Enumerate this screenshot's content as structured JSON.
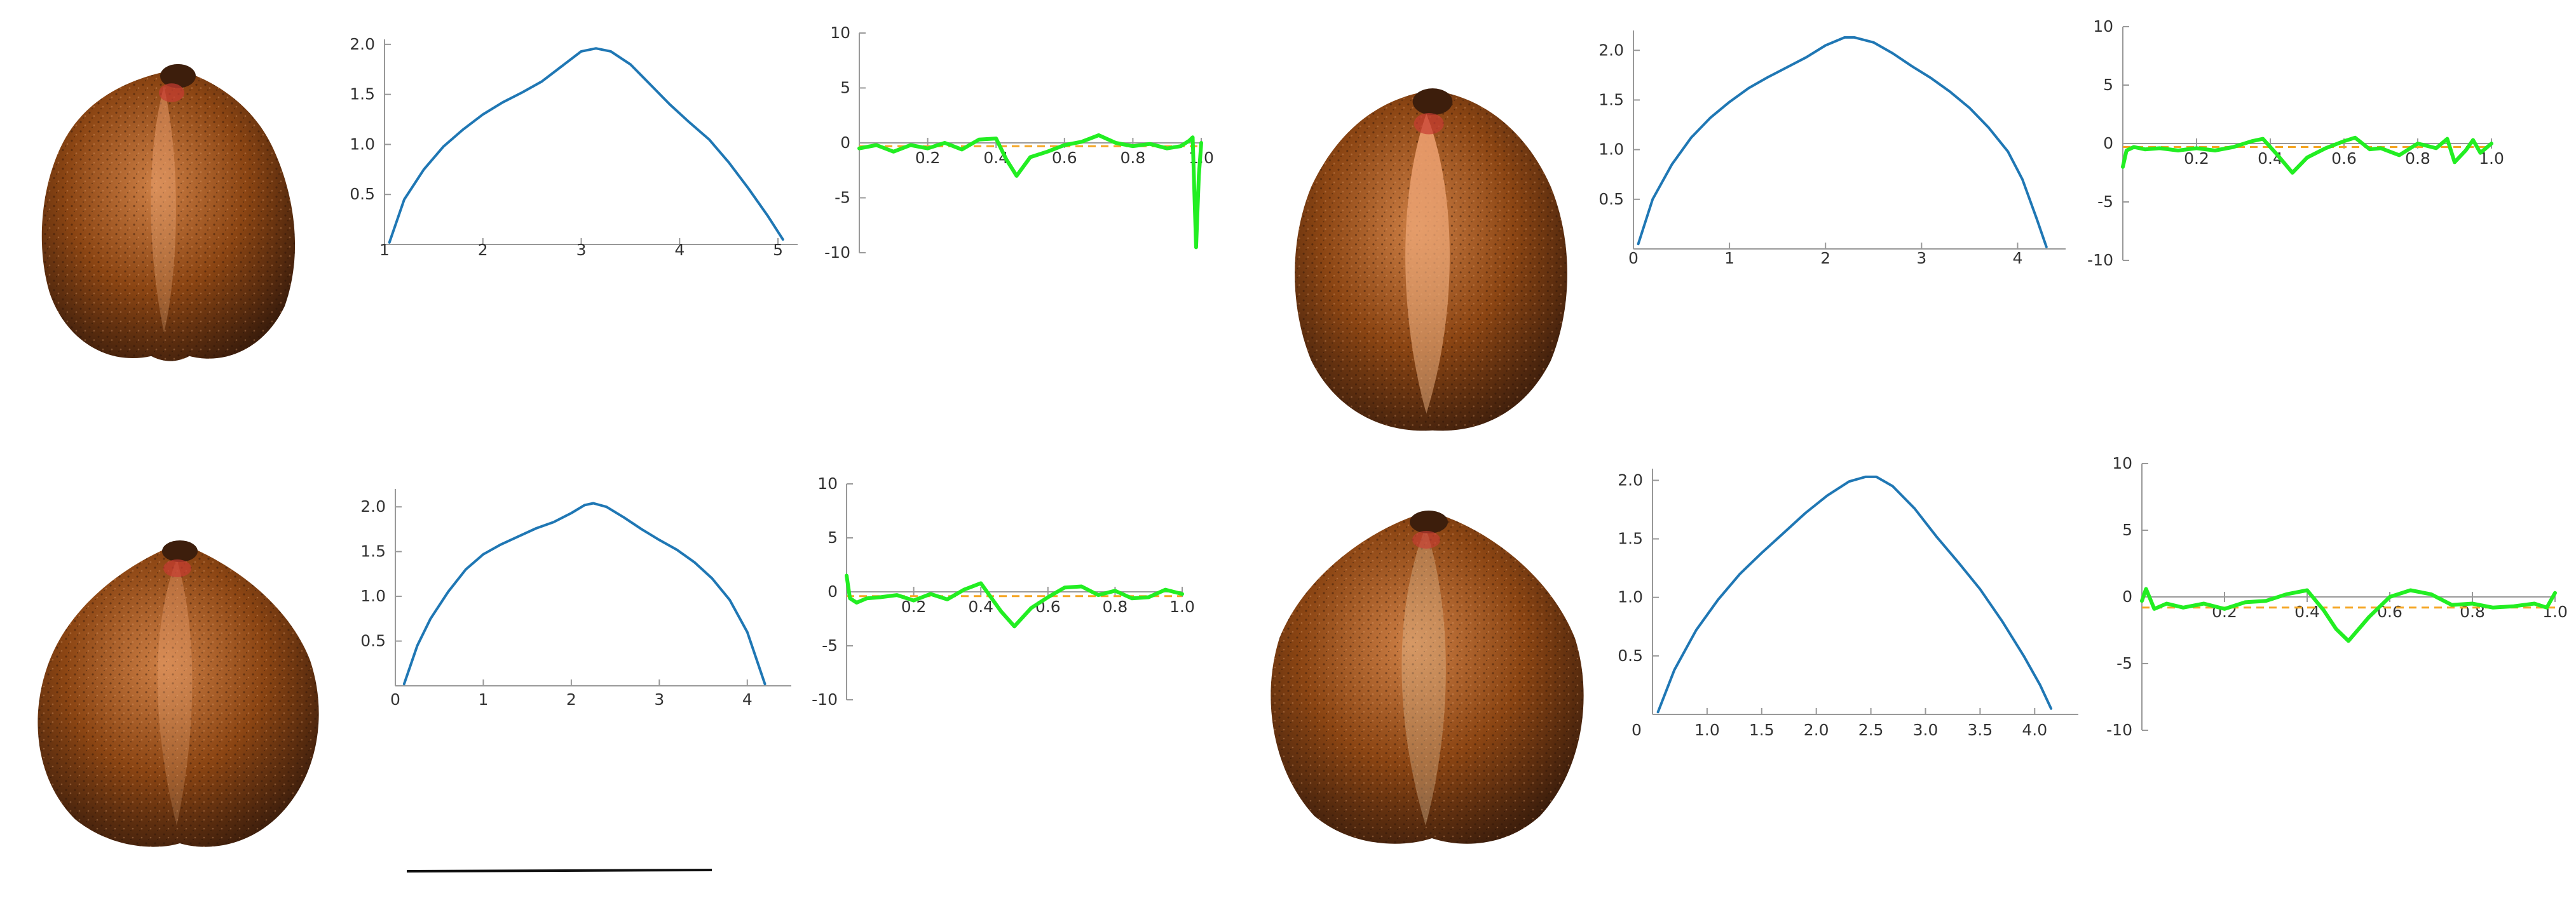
{
  "colors": {
    "profile": "#1f77b4",
    "residual": "#22ee22",
    "reference": "#f5a623",
    "axis": "#999999",
    "tick_text": "#333333",
    "seed_dark": "#3d1e0c",
    "seed_mid": "#8b4513",
    "seed_light": "#cd7f45",
    "seed_tip": "#c83c32",
    "scale_bar": "#111111"
  },
  "seeds": [
    {
      "name": "seed-top-left",
      "icon": "seed-photo-icon"
    },
    {
      "name": "seed-top-right",
      "icon": "seed-photo-icon"
    },
    {
      "name": "seed-bottom-left",
      "icon": "seed-photo-icon"
    },
    {
      "name": "seed-bottom-right",
      "icon": "seed-photo-icon"
    }
  ],
  "chart_data": [
    {
      "id": "profile-top-left",
      "type": "line",
      "title": "",
      "xlabel": "",
      "ylabel": "",
      "xlim": [
        1,
        5.2
      ],
      "ylim": [
        0,
        2.05
      ],
      "xticks": [
        1,
        2,
        3,
        4,
        5
      ],
      "xtick_labels": [
        "1",
        "2",
        "3",
        "4",
        "5"
      ],
      "yticks": [
        0.5,
        1.0,
        1.5,
        2.0
      ],
      "ytick_labels": [
        "0.5",
        "1.0",
        "1.5",
        "2.0"
      ],
      "grid": false,
      "series": [
        {
          "x": [
            1.05,
            1.2,
            1.4,
            1.6,
            1.8,
            2.0,
            2.2,
            2.4,
            2.6,
            2.8,
            3.0,
            3.15,
            3.3,
            3.5,
            3.7,
            3.9,
            4.1,
            4.3,
            4.5,
            4.7,
            4.9,
            5.05
          ],
          "values": [
            0.02,
            0.45,
            0.75,
            0.98,
            1.15,
            1.3,
            1.42,
            1.52,
            1.63,
            1.78,
            1.93,
            1.96,
            1.93,
            1.8,
            1.6,
            1.4,
            1.22,
            1.05,
            0.82,
            0.56,
            0.28,
            0.05
          ]
        }
      ]
    },
    {
      "id": "residual-top-left",
      "type": "line",
      "title": "",
      "xlabel": "",
      "ylabel": "",
      "xlim": [
        0,
        1.0
      ],
      "ylim": [
        -10,
        10
      ],
      "xticks": [
        0.2,
        0.4,
        0.6,
        0.8,
        1.0
      ],
      "xtick_labels": [
        "0.2",
        "0.4",
        "0.6",
        "0.8",
        "1.0"
      ],
      "yticks": [
        -10,
        -5,
        0,
        5,
        10
      ],
      "ytick_labels": [
        "-10",
        "-5",
        "0",
        "5",
        "10"
      ],
      "grid": false,
      "reference_line": -0.3,
      "series": [
        {
          "x": [
            0,
            0.05,
            0.1,
            0.15,
            0.2,
            0.25,
            0.3,
            0.35,
            0.4,
            0.43,
            0.46,
            0.5,
            0.55,
            0.6,
            0.65,
            0.7,
            0.75,
            0.8,
            0.85,
            0.9,
            0.94,
            0.965,
            0.975,
            0.985,
            0.993,
            1.0
          ],
          "values": [
            -0.5,
            -0.2,
            -0.8,
            -0.2,
            -0.5,
            0.0,
            -0.6,
            0.3,
            0.4,
            -1.5,
            -3.0,
            -1.3,
            -0.8,
            -0.2,
            0.1,
            0.7,
            0.0,
            -0.3,
            -0.1,
            -0.5,
            -0.3,
            0.2,
            0.5,
            -9.5,
            -3.0,
            0.0
          ]
        }
      ]
    },
    {
      "id": "profile-top-right",
      "type": "line",
      "title": "",
      "xlabel": "",
      "ylabel": "",
      "xlim": [
        0,
        4.5
      ],
      "ylim": [
        0,
        2.2
      ],
      "xticks": [
        0,
        1,
        2,
        3,
        4
      ],
      "xtick_labels": [
        "0",
        "1",
        "2",
        "3",
        "4"
      ],
      "yticks": [
        0.5,
        1.0,
        1.5,
        2.0
      ],
      "ytick_labels": [
        "0.5",
        "1.0",
        "1.5",
        "2.0"
      ],
      "grid": false,
      "series": [
        {
          "x": [
            0.05,
            0.2,
            0.4,
            0.6,
            0.8,
            1.0,
            1.2,
            1.4,
            1.6,
            1.8,
            2.0,
            2.2,
            2.3,
            2.5,
            2.7,
            2.9,
            3.1,
            3.3,
            3.5,
            3.7,
            3.9,
            4.05,
            4.2,
            4.3
          ],
          "values": [
            0.05,
            0.5,
            0.85,
            1.12,
            1.32,
            1.48,
            1.62,
            1.73,
            1.83,
            1.93,
            2.05,
            2.13,
            2.13,
            2.08,
            1.97,
            1.84,
            1.72,
            1.58,
            1.42,
            1.22,
            0.98,
            0.7,
            0.3,
            0.02
          ]
        }
      ]
    },
    {
      "id": "residual-top-right",
      "type": "line",
      "title": "",
      "xlabel": "",
      "ylabel": "",
      "xlim": [
        0,
        1.0
      ],
      "ylim": [
        -10,
        10
      ],
      "xticks": [
        0.2,
        0.4,
        0.6,
        0.8,
        1.0
      ],
      "xtick_labels": [
        "0.2",
        "0.4",
        "0.6",
        "0.8",
        "1.0"
      ],
      "yticks": [
        -10,
        -5,
        0,
        5,
        10
      ],
      "ytick_labels": [
        "-10",
        "-5",
        "0",
        "5",
        "10"
      ],
      "grid": false,
      "reference_line": -0.3,
      "series": [
        {
          "x": [
            0.0,
            0.01,
            0.03,
            0.06,
            0.1,
            0.15,
            0.2,
            0.25,
            0.3,
            0.35,
            0.38,
            0.42,
            0.46,
            0.5,
            0.55,
            0.6,
            0.63,
            0.67,
            0.7,
            0.75,
            0.8,
            0.85,
            0.88,
            0.9,
            0.93,
            0.95,
            0.97,
            1.0
          ],
          "values": [
            -2.0,
            -0.6,
            -0.3,
            -0.5,
            -0.4,
            -0.6,
            -0.4,
            -0.6,
            -0.3,
            0.2,
            0.4,
            -1.0,
            -2.5,
            -1.2,
            -0.4,
            0.2,
            0.5,
            -0.5,
            -0.4,
            -1.0,
            0.0,
            -0.4,
            0.4,
            -1.6,
            -0.6,
            0.3,
            -0.8,
            0.0
          ]
        }
      ]
    },
    {
      "id": "profile-bottom-left",
      "type": "line",
      "title": "",
      "xlabel": "",
      "ylabel": "",
      "xlim": [
        0,
        4.5
      ],
      "ylim": [
        0,
        2.2
      ],
      "xticks": [
        0,
        1,
        2,
        3,
        4
      ],
      "xtick_labels": [
        "0",
        "1",
        "2",
        "3",
        "4"
      ],
      "yticks": [
        0.5,
        1.0,
        1.5,
        2.0
      ],
      "ytick_labels": [
        "0.5",
        "1.0",
        "1.5",
        "2.0"
      ],
      "grid": false,
      "series": [
        {
          "x": [
            0.1,
            0.25,
            0.4,
            0.6,
            0.8,
            1.0,
            1.2,
            1.4,
            1.6,
            1.8,
            2.0,
            2.15,
            2.25,
            2.4,
            2.6,
            2.8,
            3.0,
            3.2,
            3.4,
            3.6,
            3.8,
            4.0,
            4.2
          ],
          "values": [
            0.02,
            0.45,
            0.75,
            1.05,
            1.3,
            1.47,
            1.58,
            1.67,
            1.76,
            1.83,
            1.93,
            2.02,
            2.04,
            2.0,
            1.88,
            1.75,
            1.63,
            1.52,
            1.38,
            1.2,
            0.96,
            0.6,
            0.02
          ]
        }
      ]
    },
    {
      "id": "residual-bottom-left",
      "type": "line",
      "title": "",
      "xlabel": "",
      "ylabel": "",
      "xlim": [
        0,
        1.0
      ],
      "ylim": [
        -10,
        10
      ],
      "xticks": [
        0.2,
        0.4,
        0.6,
        0.8,
        1.0
      ],
      "xtick_labels": [
        "0.2",
        "0.4",
        "0.6",
        "0.8",
        "1.0"
      ],
      "yticks": [
        -10,
        -5,
        0,
        5,
        10
      ],
      "ytick_labels": [
        "-10",
        "-5",
        "0",
        "5",
        "10"
      ],
      "grid": false,
      "reference_line": -0.4,
      "series": [
        {
          "x": [
            0.0,
            0.01,
            0.03,
            0.06,
            0.1,
            0.15,
            0.2,
            0.25,
            0.3,
            0.35,
            0.4,
            0.43,
            0.46,
            0.5,
            0.55,
            0.6,
            0.65,
            0.7,
            0.75,
            0.8,
            0.85,
            0.9,
            0.95,
            1.0
          ],
          "values": [
            1.5,
            -0.6,
            -1.0,
            -0.6,
            -0.5,
            -0.3,
            -0.8,
            -0.2,
            -0.7,
            0.2,
            0.8,
            -0.5,
            -1.8,
            -3.2,
            -1.5,
            -0.5,
            0.4,
            0.5,
            -0.3,
            0.1,
            -0.6,
            -0.5,
            0.2,
            -0.2
          ]
        }
      ]
    },
    {
      "id": "profile-bottom-right",
      "type": "line",
      "title": "",
      "xlabel": "",
      "ylabel": "",
      "xlim": [
        0.5,
        4.4
      ],
      "ylim": [
        0,
        2.1
      ],
      "xticks": [
        1.0,
        1.5,
        2.0,
        2.5,
        3.0,
        3.5,
        4.0
      ],
      "xtick_labels": [
        "1.0",
        "1.5",
        "2.0",
        "2.5",
        "3.0",
        "3.5",
        "4.0"
      ],
      "extra_xtick_label": "0",
      "yticks": [
        0.5,
        1.0,
        1.5,
        2.0
      ],
      "ytick_labels": [
        "0.5",
        "1.0",
        "1.5",
        "2.0"
      ],
      "grid": false,
      "series": [
        {
          "x": [
            0.55,
            0.7,
            0.9,
            1.1,
            1.3,
            1.5,
            1.7,
            1.9,
            2.1,
            2.3,
            2.45,
            2.55,
            2.7,
            2.9,
            3.1,
            3.3,
            3.5,
            3.7,
            3.9,
            4.05,
            4.15
          ],
          "values": [
            0.02,
            0.38,
            0.72,
            0.98,
            1.2,
            1.38,
            1.55,
            1.72,
            1.87,
            1.99,
            2.03,
            2.03,
            1.95,
            1.76,
            1.52,
            1.3,
            1.07,
            0.8,
            0.5,
            0.25,
            0.05
          ]
        }
      ]
    },
    {
      "id": "residual-bottom-right",
      "type": "line",
      "title": "",
      "xlabel": "",
      "ylabel": "",
      "xlim": [
        0,
        1.0
      ],
      "ylim": [
        -10,
        10
      ],
      "xticks": [
        0.2,
        0.4,
        0.6,
        0.8,
        1.0
      ],
      "xtick_labels": [
        "0.2",
        "0.4",
        "0.6",
        "0.8",
        "1.0"
      ],
      "yticks": [
        -10,
        -5,
        0,
        5,
        10
      ],
      "ytick_labels": [
        "-10",
        "-5",
        "0",
        "5",
        "10"
      ],
      "grid": false,
      "reference_line": -0.8,
      "series": [
        {
          "x": [
            0.0,
            0.01,
            0.03,
            0.06,
            0.1,
            0.15,
            0.2,
            0.25,
            0.3,
            0.35,
            0.4,
            0.44,
            0.47,
            0.5,
            0.55,
            0.6,
            0.65,
            0.7,
            0.75,
            0.8,
            0.85,
            0.9,
            0.95,
            0.98,
            1.0
          ],
          "values": [
            -0.3,
            0.6,
            -0.9,
            -0.5,
            -0.8,
            -0.5,
            -0.9,
            -0.4,
            -0.3,
            0.2,
            0.5,
            -1.0,
            -2.4,
            -3.3,
            -1.5,
            0.0,
            0.5,
            0.2,
            -0.6,
            -0.5,
            -0.8,
            -0.7,
            -0.5,
            -0.8,
            0.3
          ]
        }
      ]
    }
  ]
}
